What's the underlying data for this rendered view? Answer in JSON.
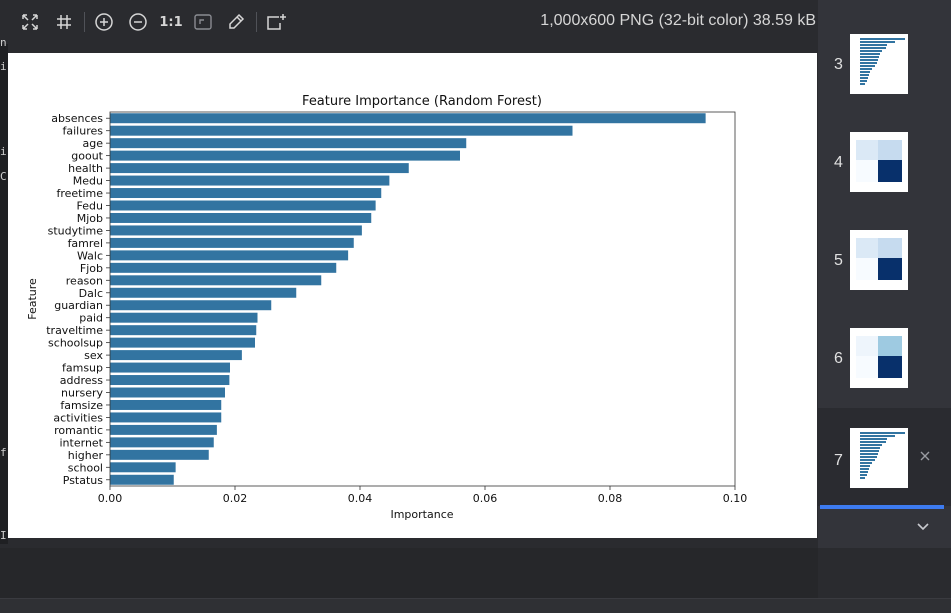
{
  "toolbar": {
    "zoom_actual_label": "1:1",
    "file_info": "1,000x600 PNG (32-bit color) 38.59 kB",
    "icons": [
      "fit-to-window-icon",
      "grid-icon",
      "zoom-in-icon",
      "zoom-out-icon",
      "actual-size-icon",
      "crop-icon",
      "color-picker-icon",
      "new-window-icon"
    ]
  },
  "gutter_chars": [
    "n",
    "i",
    "i",
    "C",
    "f",
    "I"
  ],
  "thumbnails": [
    {
      "num": "3",
      "kind": "barh"
    },
    {
      "num": "4",
      "kind": "confusion"
    },
    {
      "num": "5",
      "kind": "confusion"
    },
    {
      "num": "6",
      "kind": "confusion"
    },
    {
      "num": "7",
      "kind": "barh",
      "active": true
    }
  ],
  "colors": {
    "bar": "#3274a1",
    "accent": "#3d7bf0",
    "panel": "#33343a"
  },
  "chart_data": {
    "type": "bar",
    "orientation": "horizontal",
    "title": "Feature Importance (Random Forest)",
    "xlabel": "Importance",
    "ylabel": "Feature",
    "xlim": [
      0,
      0.1
    ],
    "xticks": [
      "0.00",
      "0.02",
      "0.04",
      "0.06",
      "0.08",
      "0.10"
    ],
    "categories": [
      "absences",
      "failures",
      "age",
      "goout",
      "health",
      "Medu",
      "freetime",
      "Fedu",
      "Mjob",
      "studytime",
      "famrel",
      "Walc",
      "Fjob",
      "reason",
      "Dalc",
      "guardian",
      "paid",
      "traveltime",
      "schoolsup",
      "sex",
      "famsup",
      "address",
      "nursery",
      "famsize",
      "activities",
      "romantic",
      "internet",
      "higher",
      "school",
      "Pstatus"
    ],
    "values": [
      0.0953,
      0.074,
      0.057,
      0.056,
      0.0478,
      0.0447,
      0.0434,
      0.0425,
      0.0418,
      0.0403,
      0.039,
      0.0381,
      0.0362,
      0.0338,
      0.0298,
      0.0258,
      0.0236,
      0.0234,
      0.0232,
      0.0211,
      0.0192,
      0.0191,
      0.0184,
      0.0178,
      0.0178,
      0.0171,
      0.0166,
      0.0158,
      0.0105,
      0.0102
    ],
    "grid": false,
    "legend": null
  }
}
